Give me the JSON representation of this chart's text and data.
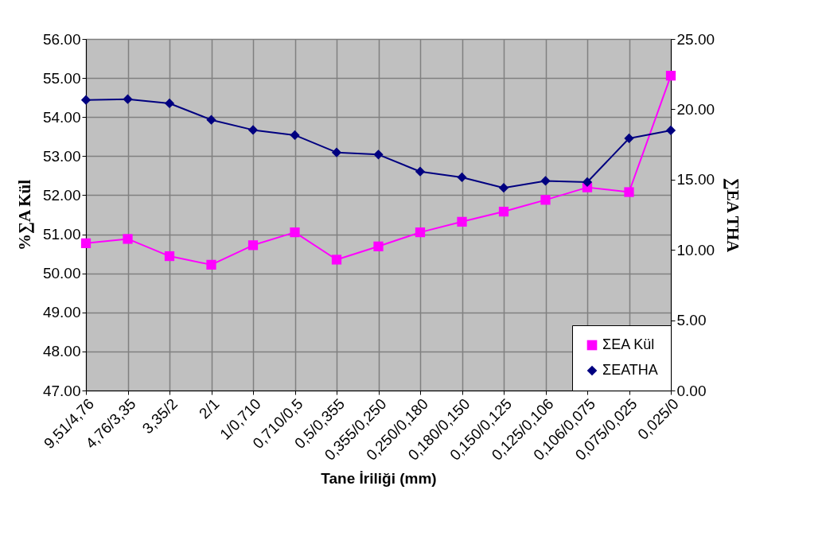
{
  "chart_data": {
    "type": "line",
    "xlabel": "Tane İriliği (mm)",
    "ylabel": "%∑A Kül",
    "y2label": "∑EA THA",
    "categories": [
      "9,51/4,76",
      "4,76/3,35",
      "3,35/2",
      "2/1",
      "1/0,710",
      "0,710/0,5",
      "0,5/0,355",
      "0,355/0,250",
      "0,250/0,180",
      "0,180/0,150",
      "0,150/0,125",
      "0,125/0,106",
      "0,106/0,075",
      "0,075/0,025",
      "0,025/0"
    ],
    "series": [
      {
        "name": "ΣEA Kül",
        "color": "#ff00ff",
        "marker": "square",
        "values": [
          50.77,
          50.88,
          50.44,
          50.22,
          50.72,
          51.05,
          50.35,
          50.69,
          51.05,
          51.32,
          51.58,
          51.88,
          52.2,
          52.08,
          55.06
        ]
      },
      {
        "name": "ΣEATHA",
        "color": "#000080",
        "marker": "diamond",
        "axis": "y2",
        "values": [
          20.66,
          20.72,
          20.42,
          19.25,
          18.53,
          18.16,
          16.93,
          16.78,
          15.57,
          15.16,
          14.41,
          14.91,
          14.82,
          17.93,
          18.5
        ]
      }
    ],
    "ylim": [
      47,
      56
    ],
    "yticks": [
      {
        "value": 47,
        "label": "47.00"
      },
      {
        "value": 48,
        "label": "48.00"
      },
      {
        "value": 49,
        "label": "49.00"
      },
      {
        "value": 50,
        "label": "50.00"
      },
      {
        "value": 51,
        "label": "51.00"
      },
      {
        "value": 52,
        "label": "52.00"
      },
      {
        "value": 53,
        "label": "53.00"
      },
      {
        "value": 54,
        "label": "54.00"
      },
      {
        "value": 55,
        "label": "55.00"
      },
      {
        "value": 56,
        "label": "56.00"
      }
    ],
    "y2lim": [
      0,
      25
    ],
    "y2ticks": [
      {
        "value": 0,
        "label": "0.00"
      },
      {
        "value": 5,
        "label": "5.00"
      },
      {
        "value": 10,
        "label": "10.00"
      },
      {
        "value": 15,
        "label": "15.00"
      },
      {
        "value": 20,
        "label": "20.00"
      },
      {
        "value": 25,
        "label": "25.00"
      }
    ],
    "grid": true,
    "legend": "bottom right"
  }
}
